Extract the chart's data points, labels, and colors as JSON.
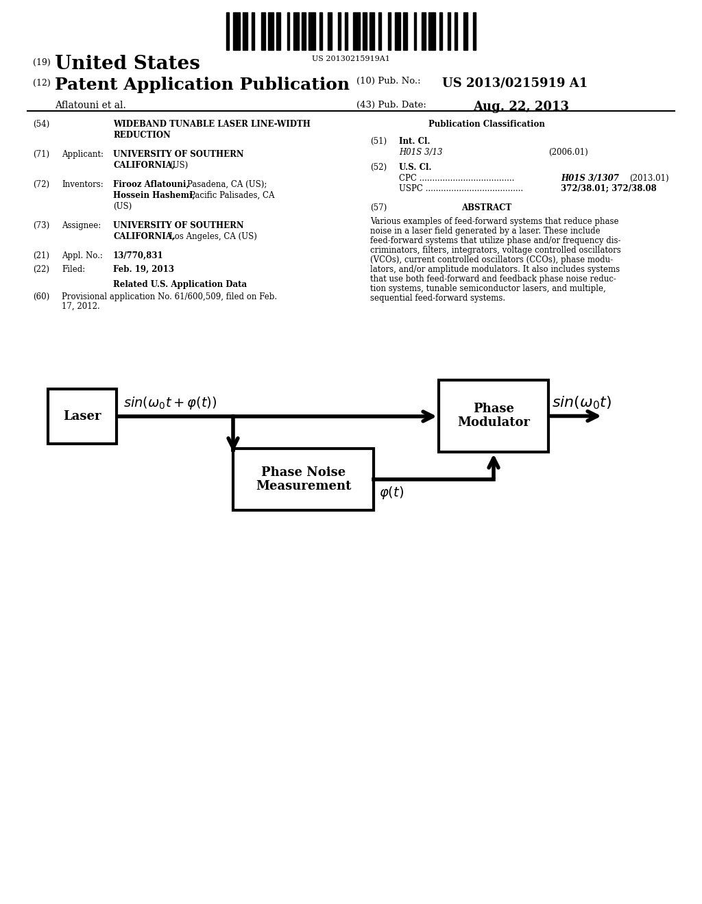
{
  "bg_color": "#ffffff",
  "barcode_text": "US 20130215919A1",
  "country": "United States",
  "pub_type": "Patent Application Publication",
  "pub_number_label": "(10) Pub. No.:",
  "pub_number": "US 2013/0215919 A1",
  "pub_date_label": "(43) Pub. Date:",
  "pub_date": "Aug. 22, 2013",
  "authors": "Aflatouni et al.",
  "abstract_lines": [
    "Various examples of feed-forward systems that reduce phase",
    "noise in a laser field generated by a laser. These include",
    "feed-forward systems that utilize phase and/or frequency dis-",
    "criminators, filters, integrators, voltage controlled oscillators",
    "(VCOs), current controlled oscillators (CCOs), phase modu-",
    "lators, and/or amplitude modulators. It also includes systems",
    "that use both feed-forward and feedback phase noise reduc-",
    "tion systems, tunable semiconductor lasers, and multiple,",
    "sequential feed-forward systems."
  ]
}
